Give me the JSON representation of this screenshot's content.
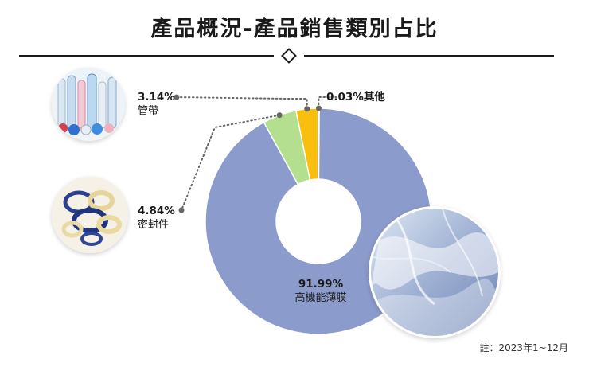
{
  "header": {
    "title": "產品概況-產品銷售類別占比"
  },
  "colors": {
    "film": "#8b9bcb",
    "seal": "#b4df8e",
    "tube": "#f9bf0e",
    "other": "#f2d04a",
    "leader": "#666666"
  },
  "icons": {
    "tube_photo": "tubes-photo-icon",
    "seal_photo": "seal-rings-photo-icon",
    "film_photo": "film-photo-icon"
  },
  "chart_data": {
    "type": "pie",
    "donut": true,
    "categories": [
      "高機能薄膜",
      "密封件",
      "管帶",
      "其他"
    ],
    "values": [
      91.99,
      4.84,
      3.14,
      0.03
    ],
    "value_labels": [
      "91.99%",
      "4.84%",
      "3.14%",
      "0.03%"
    ],
    "title": "產品概況-產品銷售類別占比",
    "legend": "none"
  },
  "labels": {
    "tube_pct": "3.14%",
    "tube_name": "管帶",
    "other_text": "0.03%其他",
    "seal_pct": "4.84%",
    "seal_name": "密封件",
    "film_pct": "91.99%",
    "film_name": "高機能薄膜"
  },
  "footer": {
    "note": "註：2023年1~12月"
  }
}
